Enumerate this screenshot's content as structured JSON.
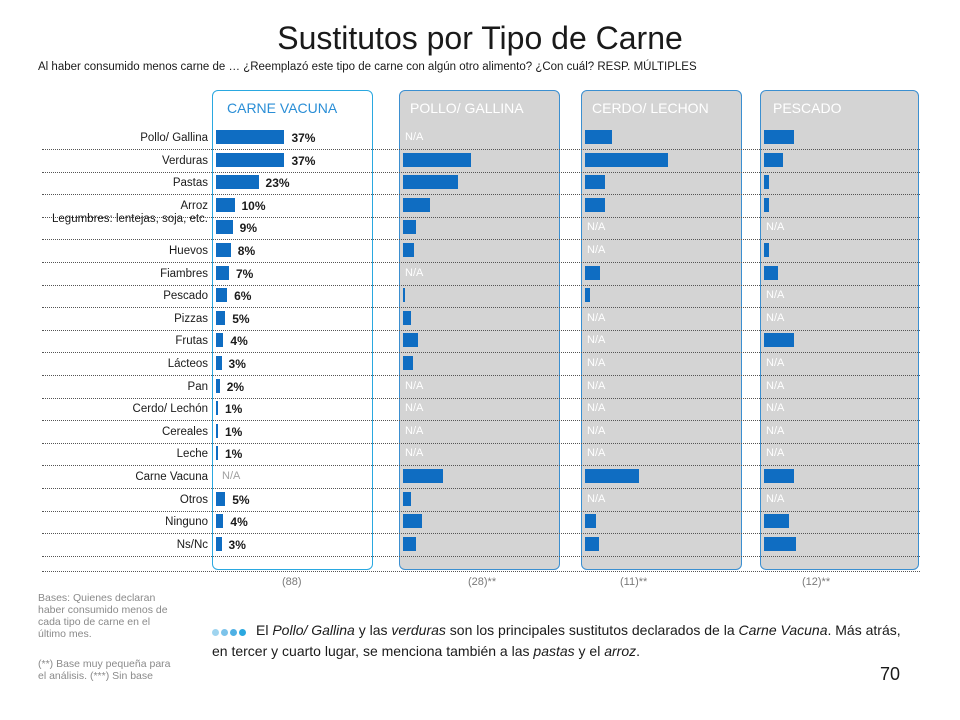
{
  "chart_data": {
    "type": "bar",
    "title": "Sustitutos por Tipo de Carne",
    "subtitle": "Al haber consumido menos carne de … ¿Reemplazó este tipo de carne con algún otro alimento? ¿Con cuál? RESP. MÚLTIPLES",
    "categories": [
      "Pollo/ Gallina",
      "Verduras",
      "Pastas",
      "Arroz",
      "Legumbres: lentejas, soja, etc.",
      "Huevos",
      "Fiambres",
      "Pescado",
      "Pizzas",
      "Frutas",
      "Lácteos",
      "Pan",
      "Cerdo/ Lechón",
      "Cereales",
      "Leche",
      "Carne Vacuna",
      "Otros",
      "Ninguno",
      "Ns/Nc"
    ],
    "series": [
      {
        "name": "CARNE VACUNA",
        "base": "(88)",
        "values": [
          37,
          37,
          23,
          10,
          9,
          8,
          7,
          6,
          5,
          4,
          3,
          2,
          1,
          1,
          1,
          null,
          5,
          4,
          3
        ],
        "labels": [
          "37%",
          "37%",
          "23%",
          "10%",
          "9%",
          "8%",
          "7%",
          "6%",
          "5%",
          "4%",
          "3%",
          "2%",
          "1%",
          "1%",
          "1%",
          "N/A",
          "5%",
          "4%",
          "3%"
        ]
      },
      {
        "name": "POLLO/ GALLINA",
        "base": "(28)**",
        "values": [
          null,
          36,
          29,
          14,
          7,
          6,
          null,
          1,
          4,
          8,
          5,
          null,
          null,
          null,
          null,
          21,
          4,
          10,
          7
        ]
      },
      {
        "name": "CERDO/ LECHON",
        "base": "(11)**",
        "values": [
          18,
          55,
          13,
          13,
          null,
          null,
          10,
          3,
          null,
          null,
          null,
          null,
          null,
          null,
          null,
          36,
          null,
          7,
          9
        ]
      },
      {
        "name": "PESCADO",
        "base": "(12)**",
        "values": [
          17,
          11,
          3,
          3,
          null,
          3,
          8,
          null,
          null,
          17,
          null,
          null,
          null,
          null,
          null,
          17,
          null,
          14,
          18
        ]
      }
    ],
    "na_label": "N/A",
    "grid": "dotted row separators",
    "legend": "none"
  },
  "notes": {
    "bases": "Bases: Quienes declaran haber consumido menos de cada tipo de carne en el último mes.",
    "small_base": "(**) Base muy pequeña para el análisis. (***) Sin base"
  },
  "summary": {
    "p1": "El ",
    "e1": "Pollo/ Gallina",
    "p2": " y las ",
    "e2": "verduras",
    "p3": " son los principales sustitutos declarados de la ",
    "e3": "Carne Vacuna",
    "p4": ". Más atrás, en tercer y cuarto lugar, se menciona también a las ",
    "e4": "pastas",
    "p5": " y el ",
    "e5": "arroz",
    "p6": "."
  },
  "page_number": "70",
  "colors": {
    "bar": "#0f6dc2",
    "accent": "#2aa8e0",
    "panel_grey": "#d4d4d4"
  }
}
